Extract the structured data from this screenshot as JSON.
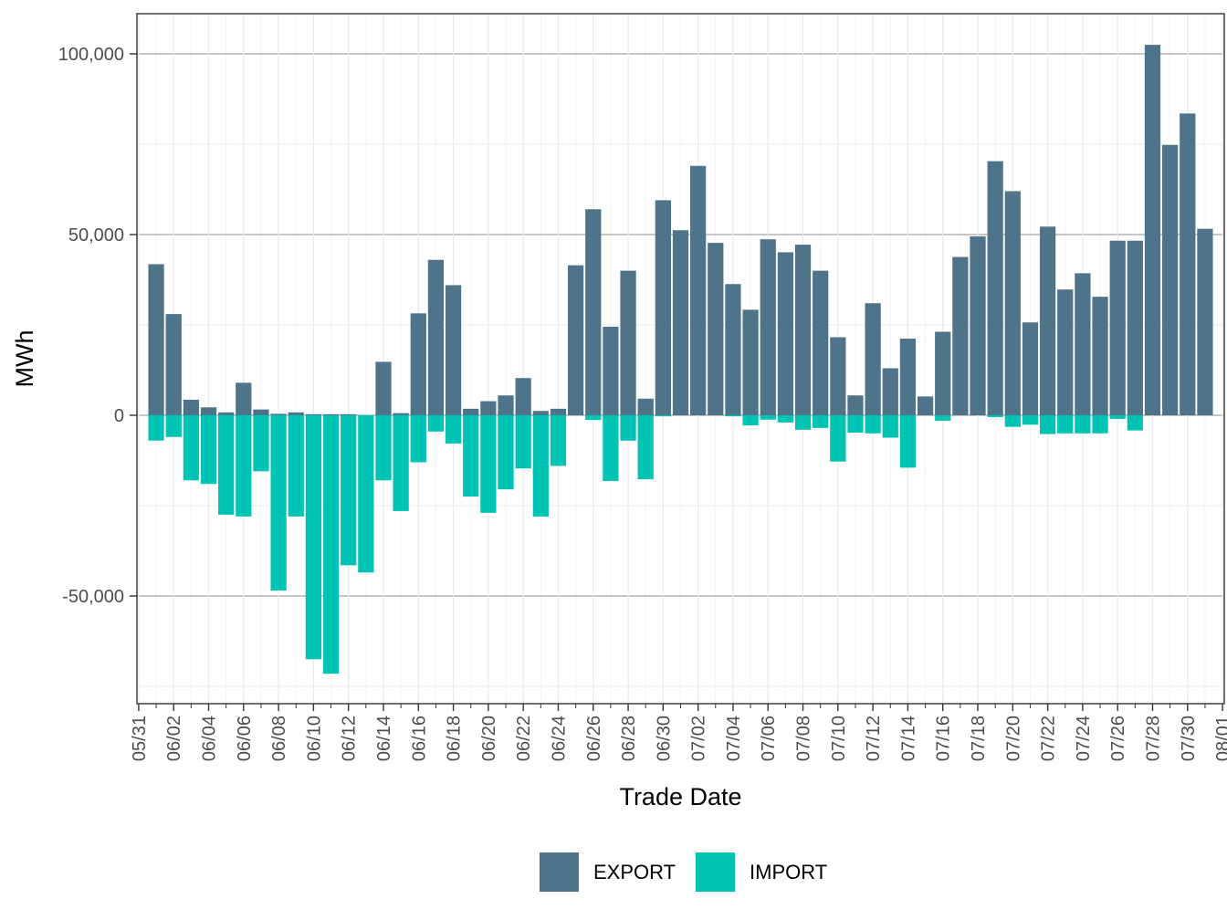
{
  "chart_data": {
    "type": "bar",
    "stacking": "diverging",
    "xlabel": "Trade Date",
    "ylabel": "MWh",
    "ylim": [
      -80000,
      110000
    ],
    "grid": true,
    "legend_position": "bottom",
    "y_ticks": [
      {
        "value": -50000,
        "label": "-50,000"
      },
      {
        "value": 0,
        "label": "0"
      },
      {
        "value": 50000,
        "label": "50,000"
      },
      {
        "value": 100000,
        "label": "100,000"
      }
    ],
    "x_tick_labels": [
      "05/31",
      "06/02",
      "06/04",
      "06/06",
      "06/08",
      "06/10",
      "06/12",
      "06/14",
      "06/16",
      "06/18",
      "06/20",
      "06/22",
      "06/24",
      "06/26",
      "06/28",
      "06/30",
      "07/02",
      "07/04",
      "07/06",
      "07/08",
      "07/10",
      "07/12",
      "07/14",
      "07/16",
      "07/18",
      "07/20",
      "07/22",
      "07/24",
      "07/26",
      "07/28",
      "07/30",
      "08/01"
    ],
    "x": [
      "06/01",
      "06/02",
      "06/03",
      "06/04",
      "06/05",
      "06/06",
      "06/07",
      "06/08",
      "06/09",
      "06/10",
      "06/11",
      "06/12",
      "06/13",
      "06/14",
      "06/15",
      "06/16",
      "06/17",
      "06/18",
      "06/19",
      "06/20",
      "06/21",
      "06/22",
      "06/23",
      "06/24",
      "06/25",
      "06/26",
      "06/27",
      "06/28",
      "06/29",
      "06/30",
      "07/01",
      "07/02",
      "07/03",
      "07/04",
      "07/05",
      "07/06",
      "07/07",
      "07/08",
      "07/09",
      "07/10",
      "07/11",
      "07/12",
      "07/13",
      "07/14",
      "07/15",
      "07/16",
      "07/17",
      "07/18",
      "07/19",
      "07/20",
      "07/21",
      "07/22",
      "07/23",
      "07/24",
      "07/25",
      "07/26",
      "07/27",
      "07/28",
      "07/29",
      "07/30",
      "07/31"
    ],
    "series": [
      {
        "name": "EXPORT",
        "color": "#4f7388",
        "values": [
          41800,
          28000,
          4300,
          2200,
          800,
          9000,
          1600,
          400,
          800,
          300,
          300,
          300,
          0,
          14800,
          600,
          28200,
          43000,
          36000,
          1800,
          3900,
          5500,
          10300,
          1200,
          1800,
          41500,
          57000,
          24500,
          40000,
          4600,
          59500,
          51200,
          69000,
          47700,
          36300,
          29200,
          48700,
          45100,
          47200,
          40000,
          21600,
          5500,
          31000,
          13000,
          21200,
          5200,
          23100,
          43800,
          49500,
          70300,
          62000,
          25700,
          52200,
          34800,
          39300,
          32800,
          48300,
          48300,
          102500,
          74800,
          83500,
          51600
        ]
      },
      {
        "name": "IMPORT",
        "color": "#00c4b3",
        "values": [
          -7000,
          -6000,
          -18000,
          -19000,
          -27500,
          -28000,
          -15500,
          -48500,
          -28000,
          -67500,
          -71500,
          -41500,
          -43500,
          -18000,
          -26500,
          -13000,
          -4500,
          -7800,
          -22500,
          -27000,
          -20500,
          -14700,
          -28000,
          -14000,
          0,
          -1300,
          -18200,
          -7000,
          -17700,
          -300,
          0,
          0,
          0,
          -300,
          -2800,
          -1200,
          -2000,
          -4000,
          -3500,
          -12800,
          -4800,
          -5000,
          -6200,
          -14500,
          0,
          -1500,
          0,
          0,
          -500,
          -3200,
          -2600,
          -5200,
          -5000,
          -5000,
          -5000,
          -1000,
          -4200,
          0,
          0,
          0,
          0
        ]
      }
    ]
  }
}
